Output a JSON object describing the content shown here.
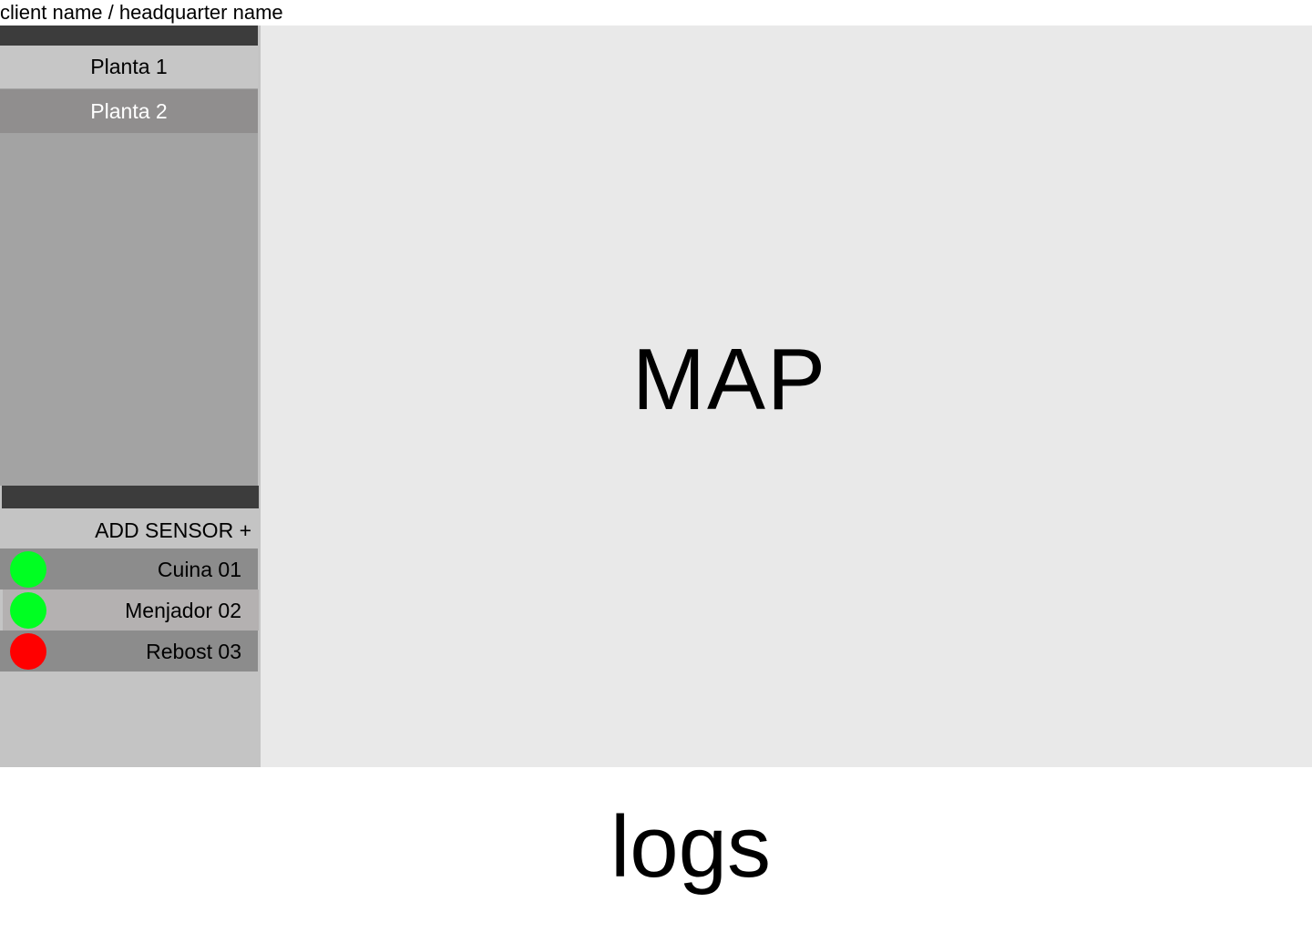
{
  "header": {
    "title": "client name / headquarter name"
  },
  "floors": {
    "items": [
      {
        "label": "Planta 1",
        "selected": false
      },
      {
        "label": "Planta 2",
        "selected": true
      }
    ]
  },
  "sensors": {
    "add_label": "ADD SENSOR +",
    "items": [
      {
        "label": "Cuina 01",
        "status_color": "#00ff22"
      },
      {
        "label": "Menjador 02",
        "status_color": "#00ff22"
      },
      {
        "label": "Rebost 03",
        "status_color": "#ff0000"
      }
    ]
  },
  "map": {
    "label": "MAP"
  },
  "logs": {
    "label": "logs"
  },
  "colors": {
    "status_ok": "#00ff22",
    "status_error": "#ff0000",
    "bar_dark": "#3c3c3c",
    "selected_floor": "#908e8e"
  }
}
